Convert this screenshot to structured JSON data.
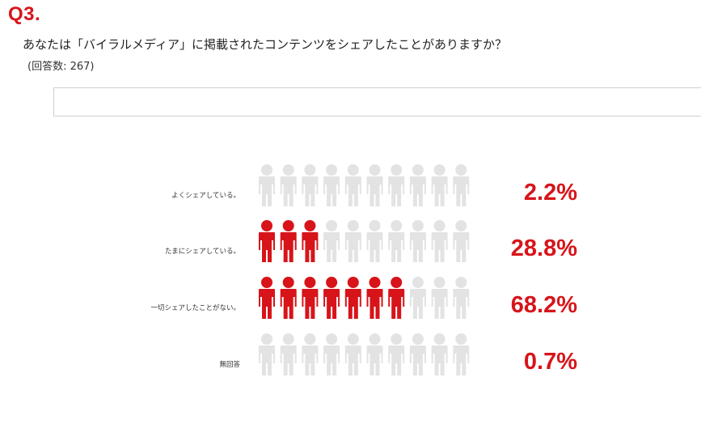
{
  "header": {
    "q_label": "Q3.",
    "question": "あなたは「バイラルメディア」に掲載されたコンテンツをシェアしたことがありますか？",
    "count": "(回答数: 267)"
  },
  "colors": {
    "accent": "#d7141a",
    "inactive_icon": "#e3e3e3"
  },
  "chart_data": {
    "type": "pictograph",
    "icons_per_row": 10,
    "categories": [
      "よくシェアしている。",
      "たまにシェアしている。",
      "一切シェアしたことがない。",
      "無回答"
    ],
    "values": [
      2.2,
      28.8,
      68.2,
      0.7
    ],
    "value_labels": [
      "2.2%",
      "28.8%",
      "68.2%",
      "0.7%"
    ],
    "filled_icons": [
      0,
      3,
      7,
      0
    ]
  }
}
